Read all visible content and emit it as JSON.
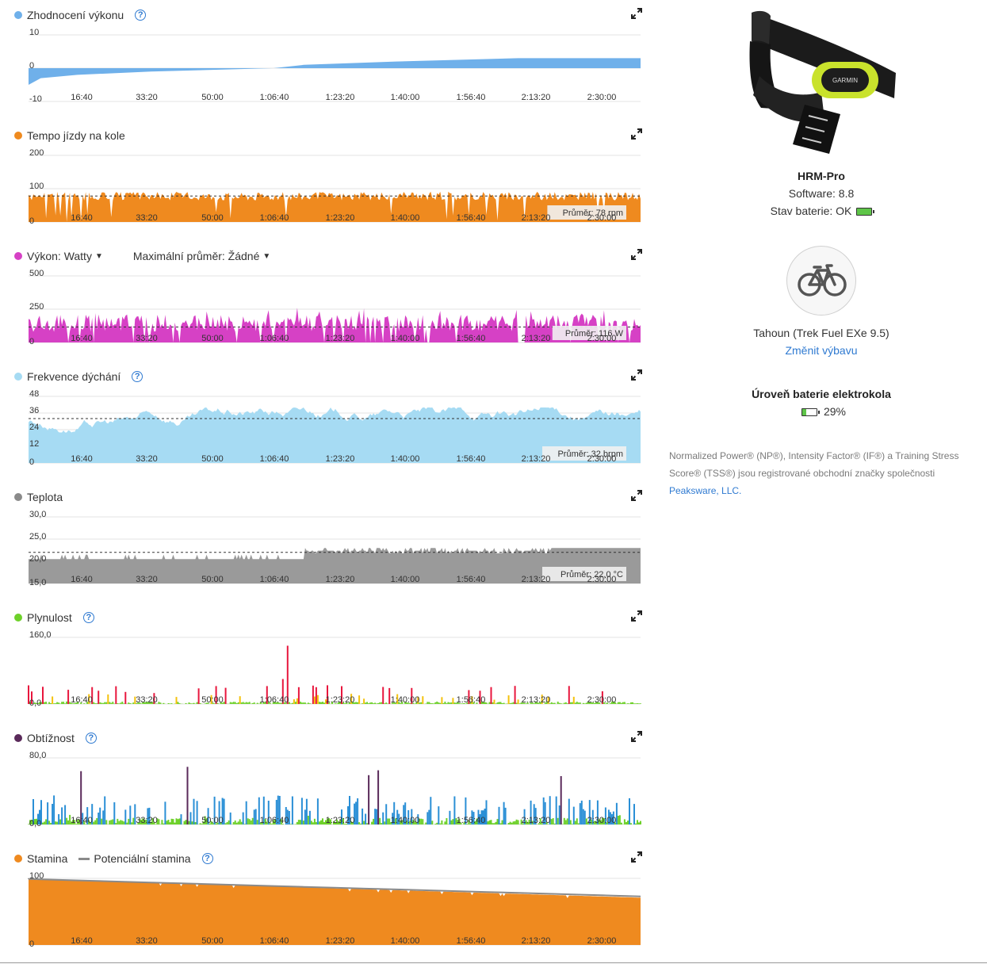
{
  "time_ticks": [
    "16:40",
    "33:20",
    "50:00",
    "1:06:40",
    "1:23:20",
    "1:40:00",
    "1:56:40",
    "2:13:20",
    "2:30:00"
  ],
  "panels": [
    {
      "id": "performance",
      "title": "Zhodnocení výkonu",
      "color": "#6fb0ea",
      "help": true,
      "y_ticks": [
        "10",
        "0",
        "-10"
      ],
      "ylim": [
        -10,
        10
      ],
      "kind": "performance",
      "avg_label": ""
    },
    {
      "id": "cadence",
      "title": "Tempo jízdy na kole",
      "color": "#ef8a1f",
      "help": false,
      "y_ticks": [
        "200",
        "100",
        "0"
      ],
      "ylim": [
        0,
        200
      ],
      "kind": "cadence",
      "avg_label": "Průměr: 78 rpm",
      "avg_value": 78
    },
    {
      "id": "power",
      "title": "Výkon: Watty",
      "color": "#d641c5",
      "help": false,
      "y_ticks": [
        "500",
        "250",
        "0"
      ],
      "ylim": [
        0,
        500
      ],
      "kind": "power",
      "avg_label": "Průměr: 116 W",
      "avg_value": 116,
      "dropdown": "Maximální průměr: Žádné"
    },
    {
      "id": "respiration",
      "title": "Frekvence dýchání",
      "color": "#a6dbf3",
      "help": true,
      "y_ticks": [
        "48",
        "36",
        "24",
        "12",
        "0"
      ],
      "ylim": [
        0,
        48
      ],
      "kind": "resp",
      "avg_label": "Průměr: 32 brpm",
      "avg_value": 32
    },
    {
      "id": "temperature",
      "title": "Teplota",
      "color": "#8a8a8a",
      "help": false,
      "y_ticks": [
        "30,0",
        "25,0",
        "20,0",
        "15,0"
      ],
      "ylim": [
        15,
        30
      ],
      "kind": "temp",
      "avg_label": "Průměr: 22,0 °C",
      "avg_value": 22
    },
    {
      "id": "smoothness",
      "title": "Plynulost",
      "color": "#6ed12a",
      "help": true,
      "y_ticks": [
        "160,0",
        "0,0"
      ],
      "ylim": [
        0,
        160
      ],
      "kind": "smooth",
      "avg_label": ""
    },
    {
      "id": "difficulty",
      "title": "Obtížnost",
      "color": "#5a2a5a",
      "help": true,
      "y_ticks": [
        "80,0",
        "0,0"
      ],
      "ylim": [
        0,
        80
      ],
      "kind": "difficulty",
      "avg_label": ""
    },
    {
      "id": "stamina",
      "title": "Stamina",
      "color": "#ef8a1f",
      "help": true,
      "y_ticks": [
        "100",
        "0"
      ],
      "ylim": [
        0,
        100
      ],
      "kind": "stamina",
      "avg_label": "",
      "legend2": "Potenciální stamina"
    }
  ],
  "sidebar": {
    "device_name": "HRM-Pro",
    "device_brand": "GARMIN",
    "software": "Software: 8.8",
    "battery_status": "Stav baterie: OK",
    "rider": "Tahoun (Trek Fuel EXe 9.5)",
    "change_gear": "Změnit výbavu",
    "ebike_battery_title": "Úroveň baterie elektrokola",
    "ebike_battery_value": "29%",
    "ebike_battery_level": 0.29,
    "note_text": "Normalized Power® (NP®), Intensity Factor® (IF®) a Training Stress Score® (TSS®) jsou registrované obchodní značky společnosti ",
    "note_link": "Peaksware, LLC."
  },
  "colors": {
    "accent": "#2f7ad1",
    "smooth_high": "#e8163d",
    "smooth_mid": "#f4c20d",
    "smooth_low": "#6ed12a",
    "diff_high": "#5a2a5a",
    "diff_mid": "#2a8fd6",
    "diff_low": "#6ed12a",
    "stamina_potential": "#8a8a8a"
  }
}
